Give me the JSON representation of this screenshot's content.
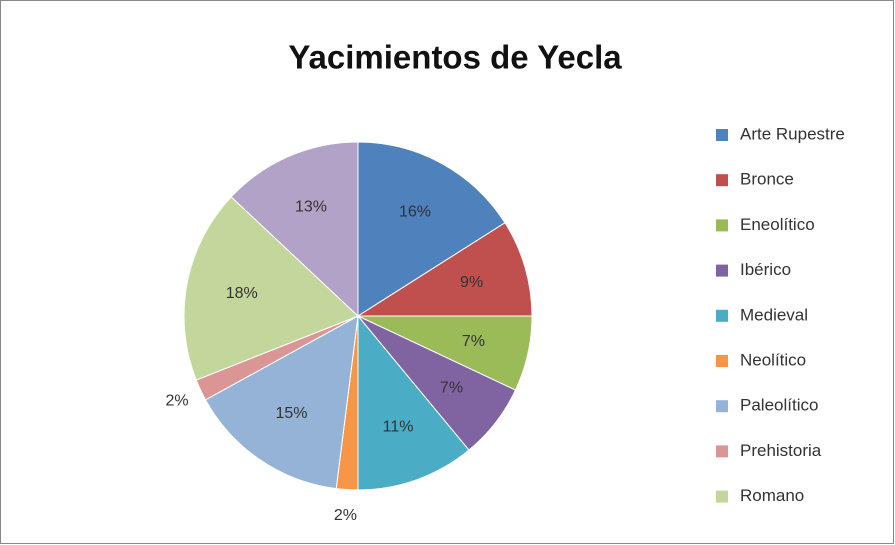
{
  "chart_data": {
    "type": "pie",
    "title": "Yacimientos de Yecla",
    "categories": [
      "Arte Rupestre",
      "Bronce",
      "Eneolítico",
      "Ibérico",
      "Medieval",
      "Neolítico",
      "Paleolítico",
      "Prehistoria",
      "Romano",
      null
    ],
    "values": [
      16,
      9,
      7,
      7,
      11,
      2,
      15,
      2,
      18,
      13
    ],
    "value_labels": [
      "16%",
      "9%",
      "7%",
      "7%",
      "11%",
      "2%",
      "15%",
      "2%",
      "18%",
      "13%"
    ],
    "colors": [
      "#4F81BD",
      "#C0504D",
      "#9BBB59",
      "#8064A2",
      "#4BACC6",
      "#F79646",
      "#95B3D7",
      "#D99694",
      "#C3D69B",
      "#B3A2C7"
    ],
    "legend": "right"
  }
}
